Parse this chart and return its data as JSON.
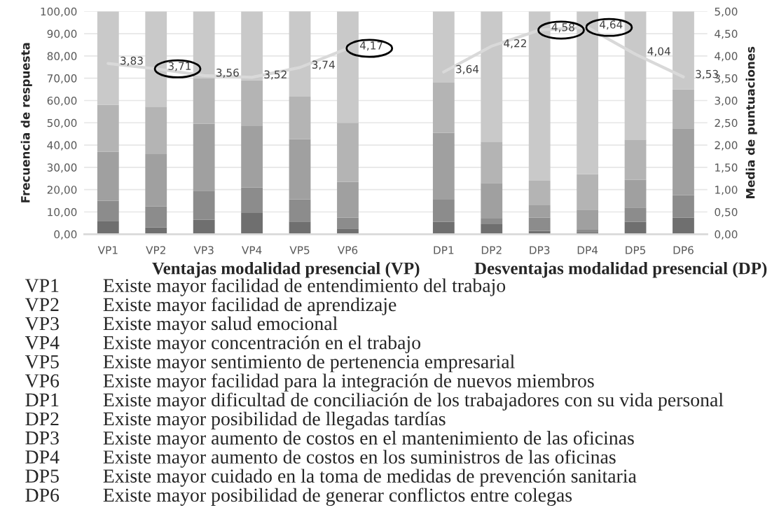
{
  "chart_data": {
    "type": "bar",
    "stacked": true,
    "categories": [
      "VP1",
      "VP2",
      "VP3",
      "VP4",
      "VP5",
      "VP6",
      null,
      "DP1",
      "DP2",
      "DP3",
      "DP4",
      "DP5",
      "DP6"
    ],
    "series": [
      {
        "color": "#6f6f6f",
        "values": [
          6,
          3,
          6.5,
          9.5,
          5.7,
          2.5,
          null,
          5.5,
          4.5,
          1.5,
          1,
          5.5,
          7.5
        ]
      },
      {
        "color": "#8c8c8c",
        "values": [
          9,
          9.4,
          13,
          11.5,
          10,
          5,
          null,
          10,
          2.5,
          6,
          1,
          6.5,
          10
        ]
      },
      {
        "color": "#a0a0a0",
        "values": [
          22,
          23.5,
          30,
          27.5,
          27,
          16,
          null,
          30,
          16,
          5.5,
          9,
          12.5,
          30
        ]
      },
      {
        "color": "#b4b4b4",
        "values": [
          21,
          21.3,
          20.5,
          20.5,
          19,
          26.5,
          null,
          22.5,
          18.5,
          11,
          16,
          18,
          17.5
        ]
      },
      {
        "color": "#c9c9c9",
        "values": [
          42,
          42.8,
          30,
          31,
          38.4,
          50,
          null,
          32,
          58.5,
          76,
          73,
          57.5,
          35
        ]
      },
      {
        "type": "line",
        "axis": "y2",
        "color": "#d9d9d9",
        "values": [
          3.83,
          3.71,
          3.56,
          3.52,
          3.74,
          4.17,
          null,
          3.64,
          4.22,
          4.58,
          4.64,
          4.04,
          3.53
        ],
        "value_labels": [
          "3,83",
          "3,71",
          "3,56",
          "3,52",
          "3,74",
          "4,17",
          null,
          "3,64",
          "4,22",
          "4,58",
          "4,64",
          "4,04",
          "3,53"
        ]
      }
    ],
    "ylabel": "Frecuencia de respuesta",
    "y2label": "Media de puntuaciones",
    "ylim": [
      0,
      100
    ],
    "yticks": [
      {
        "value": 0,
        "label": "0,00"
      },
      {
        "value": 10,
        "label": "10,00"
      },
      {
        "value": 20,
        "label": "20,00"
      },
      {
        "value": 30,
        "label": "30,00"
      },
      {
        "value": 40,
        "label": "40,00"
      },
      {
        "value": 50,
        "label": "50,00"
      },
      {
        "value": 60,
        "label": "60,00"
      },
      {
        "value": 70,
        "label": "70,00"
      },
      {
        "value": 80,
        "label": "80,00"
      },
      {
        "value": 90,
        "label": "90,00"
      },
      {
        "value": 100,
        "label": "100,00"
      }
    ],
    "y2lim": [
      0,
      5
    ],
    "y2ticks": [
      {
        "value": 0,
        "label": "0,00"
      },
      {
        "value": 0.5,
        "label": "0,50"
      },
      {
        "value": 1,
        "label": "1,00"
      },
      {
        "value": 1.5,
        "label": "1,50"
      },
      {
        "value": 2,
        "label": "2,00"
      },
      {
        "value": 2.5,
        "label": "2,50"
      },
      {
        "value": 3,
        "label": "3,00"
      },
      {
        "value": 3.5,
        "label": "3,50"
      },
      {
        "value": 4,
        "label": "4,00"
      },
      {
        "value": 4.5,
        "label": "4,50"
      },
      {
        "value": 5,
        "label": "5,00"
      }
    ],
    "grid": "y",
    "annotations": [
      "Ventajas modalidad presencial (VP)",
      "Desventajas modalidad presencial (DP)",
      "VP1",
      "Existe mayor facilidad de entendimiento del trabajo",
      "VP2",
      "Existe mayor facilidad de aprendizaje",
      "VP3",
      "Existe mayor salud emocional",
      "VP4",
      "Existe mayor concentración en el trabajo",
      "VP5",
      "Existe mayor sentimiento de pertenencia empresarial",
      "VP6",
      "Existe mayor facilidad para la integración de nuevos miembros",
      "DP1",
      "Existe mayor dificultad de conciliación de los trabajadores con su vida personal",
      "DP2",
      "Existe mayor posibilidad de llegadas tardías",
      "DP3",
      "Existe mayor aumento de costos en el mantenimiento de las oficinas",
      "DP4",
      "Existe mayor aumento de costos en los suministros de las oficinas",
      "DP5",
      "Existe mayor cuidado en la toma de medidas de prevención sanitaria",
      "DP6",
      "Existe mayor posibilidad de generar conflictos entre colegas"
    ]
  }
}
